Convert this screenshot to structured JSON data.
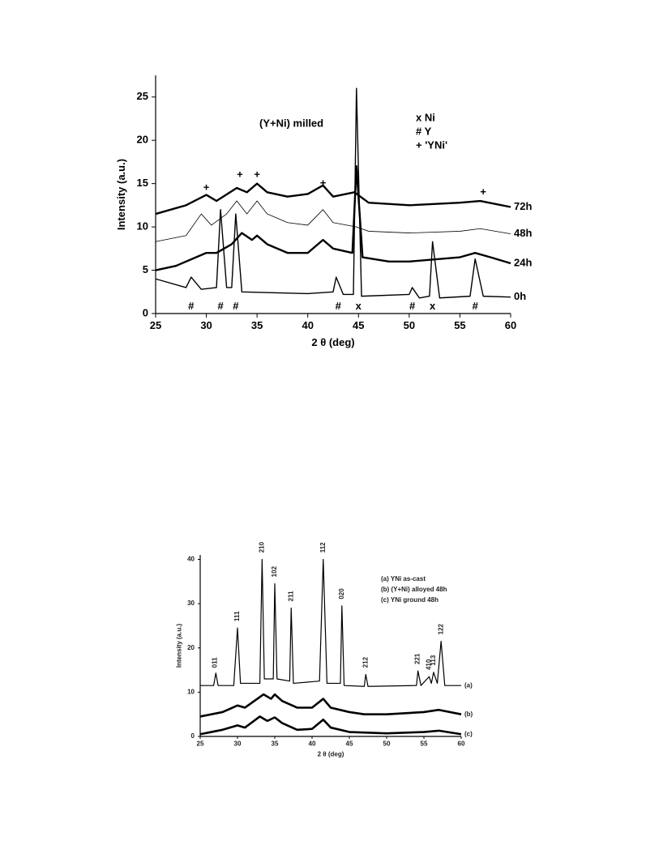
{
  "chart_data": [
    {
      "type": "line",
      "xlabel": "2 θ (deg)",
      "ylabel": "Intensity (a.u.)",
      "xlim": [
        25,
        60
      ],
      "ylim": [
        0,
        27.5
      ],
      "xticks": [
        25,
        30,
        35,
        40,
        45,
        50,
        55,
        60
      ],
      "yticks": [
        0,
        5,
        10,
        15,
        20,
        25
      ],
      "title": "(Y+Ni) milled",
      "legend": [
        "x Ni",
        "# Y",
        "+ 'YNi'"
      ],
      "series": [
        {
          "name": "72h",
          "color": "#000",
          "x": [
            25,
            28,
            30,
            31,
            33,
            34,
            35,
            36,
            38,
            40,
            41.5,
            42.5,
            44.6,
            46,
            50,
            55,
            57,
            60
          ],
          "values": [
            11.5,
            12.5,
            13.7,
            13,
            14.5,
            14,
            15,
            14,
            13.5,
            13.8,
            14.8,
            13.5,
            14,
            12.8,
            12.5,
            12.8,
            13,
            12.3
          ]
        },
        {
          "name": "48h",
          "color": "#000",
          "x": [
            25,
            28,
            29.5,
            30.5,
            32,
            33,
            34,
            35,
            36,
            38,
            40,
            41.5,
            42.5,
            44.8,
            46,
            50,
            55,
            57,
            60
          ],
          "values": [
            8.3,
            9,
            11.5,
            10.2,
            11.5,
            13,
            11.5,
            13,
            11.5,
            10.5,
            10.2,
            12,
            10.5,
            10,
            9.5,
            9.3,
            9.5,
            9.8,
            9.2
          ]
        },
        {
          "name": "24h",
          "color": "#000",
          "x": [
            25,
            27,
            30,
            31,
            32.5,
            33.5,
            34.5,
            35,
            36,
            38,
            40,
            41.5,
            42.5,
            44.4,
            44.8,
            45.4,
            48,
            50,
            55,
            56.5,
            58,
            60
          ],
          "values": [
            5,
            5.5,
            7,
            7,
            8,
            9.3,
            8.5,
            9,
            8,
            7,
            7,
            8.5,
            7.5,
            7,
            17,
            6.5,
            6,
            6,
            6.5,
            7,
            6.5,
            5.8
          ]
        },
        {
          "name": "0h",
          "color": "#000",
          "x": [
            25,
            28,
            28.5,
            29.5,
            31,
            31.4,
            32,
            32.5,
            32.9,
            33.5,
            40,
            42.5,
            42.8,
            43.5,
            44.5,
            44.8,
            45.3,
            50,
            50.3,
            51,
            52,
            52.3,
            53,
            56,
            56.5,
            57.3,
            60
          ],
          "values": [
            4,
            3,
            4.2,
            2.8,
            3,
            12,
            3,
            3,
            11.5,
            2.5,
            2.3,
            2.5,
            4.2,
            2.2,
            2.2,
            26,
            2,
            2.2,
            3,
            1.8,
            2,
            8.3,
            1.8,
            2,
            6.3,
            2,
            1.9
          ]
        }
      ],
      "annotations": [
        {
          "text": "+",
          "x": 30,
          "y": 14.5
        },
        {
          "text": "+",
          "x": 33.3,
          "y": 16
        },
        {
          "text": "+",
          "x": 35,
          "y": 16
        },
        {
          "text": "+",
          "x": 41.5,
          "y": 15
        },
        {
          "text": "+",
          "x": 57.3,
          "y": 14
        },
        {
          "text": "#",
          "x": 28.5,
          "y": 0.8
        },
        {
          "text": "#",
          "x": 31.4,
          "y": 0.8
        },
        {
          "text": "#",
          "x": 32.9,
          "y": 0.8
        },
        {
          "text": "#",
          "x": 43,
          "y": 0.8
        },
        {
          "text": "#",
          "x": 50.3,
          "y": 0.8
        },
        {
          "text": "#",
          "x": 56.5,
          "y": 0.8
        },
        {
          "text": "x",
          "x": 45,
          "y": 0.8
        },
        {
          "text": "x",
          "x": 52.3,
          "y": 0.8
        }
      ]
    },
    {
      "type": "line",
      "xlabel": "2 θ (deg)",
      "ylabel": "Intensity (a.u.)",
      "xlim": [
        25,
        60
      ],
      "ylim": [
        0,
        41
      ],
      "xticks": [
        25,
        30,
        35,
        40,
        45,
        50,
        55,
        60
      ],
      "yticks": [
        0,
        10,
        20,
        30,
        40
      ],
      "legend": [
        "(a) YNi as-cast",
        "(b) (Y+Ni) alloyed 48h",
        "(c) YNi ground 48h"
      ],
      "series": [
        {
          "name": "(a)",
          "color": "#000",
          "x": [
            25,
            26.8,
            27.1,
            27.4,
            29.5,
            30,
            30.4,
            33,
            33.3,
            33.6,
            34.8,
            35,
            35.3,
            37,
            37.2,
            37.5,
            41,
            41.5,
            42,
            43.8,
            44,
            44.3,
            47,
            47.2,
            47.5,
            54,
            54.2,
            54.6,
            55.7,
            56,
            56.3,
            56.8,
            57.3,
            57.8,
            60
          ],
          "values": [
            11.5,
            11.5,
            14.3,
            11.5,
            11.5,
            24.5,
            12,
            12,
            40,
            13,
            13,
            34.5,
            13,
            12.5,
            29,
            12,
            12.5,
            40,
            12,
            12,
            29.5,
            11.5,
            11.3,
            14,
            11.3,
            11.5,
            14.8,
            11.5,
            13.5,
            12,
            14.5,
            12,
            21.5,
            11.5,
            11.5
          ]
        },
        {
          "name": "(b)",
          "color": "#000",
          "x": [
            25,
            28,
            30,
            31,
            33.5,
            34.5,
            35,
            36,
            38,
            40,
            41.5,
            42.5,
            45,
            47,
            50,
            55,
            57,
            60
          ],
          "values": [
            4.5,
            5.5,
            7,
            6.5,
            9.5,
            8.5,
            9.5,
            8,
            6.5,
            6.5,
            8.5,
            6.5,
            5.5,
            5,
            5,
            5.5,
            6,
            5
          ]
        },
        {
          "name": "(c)",
          "color": "#000",
          "x": [
            25,
            28,
            30,
            31,
            33,
            34,
            35,
            36,
            38,
            40,
            41.5,
            42.5,
            45,
            50,
            55,
            57,
            60
          ],
          "values": [
            0.5,
            1.5,
            2.5,
            2,
            4.5,
            3.5,
            4.3,
            3,
            1.5,
            1.7,
            3.8,
            2,
            1,
            0.7,
            1,
            1.3,
            0.5
          ]
        }
      ],
      "annotations": [
        {
          "text": "011",
          "x": 27,
          "y": 15.5
        },
        {
          "text": "111",
          "x": 30,
          "y": 26
        },
        {
          "text": "210",
          "x": 33.3,
          "y": 41.5
        },
        {
          "text": "102",
          "x": 35,
          "y": 36
        },
        {
          "text": "211",
          "x": 37.2,
          "y": 30.5
        },
        {
          "text": "112",
          "x": 41.5,
          "y": 41.5
        },
        {
          "text": "020",
          "x": 44,
          "y": 31
        },
        {
          "text": "212",
          "x": 47.2,
          "y": 15.5
        },
        {
          "text": "221",
          "x": 54.2,
          "y": 16.3
        },
        {
          "text": "410",
          "x": 55.7,
          "y": 15
        },
        {
          "text": "113",
          "x": 56.3,
          "y": 16
        },
        {
          "text": "122",
          "x": 57.3,
          "y": 23
        }
      ]
    }
  ]
}
